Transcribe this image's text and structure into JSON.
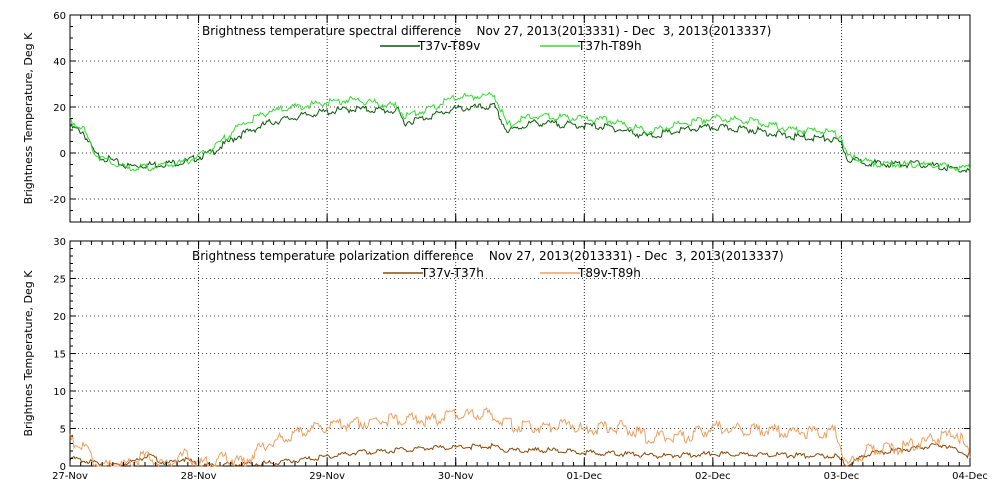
{
  "chart_data": [
    {
      "type": "line",
      "title": "Brightness temperature spectral difference    Nov 27, 2013(2013331) - Dec  3, 2013(2013337)",
      "ylabel": "Brightness Temperature, Deg K",
      "xlabel": "",
      "ylim": [
        -30,
        60
      ],
      "yticks": [
        "-20",
        "0",
        "20",
        "40",
        "60"
      ],
      "ytick_values": [
        -20,
        0,
        20,
        40,
        60
      ],
      "xlim_days": [
        0,
        7
      ],
      "xtick_labels": [
        "27-Nov",
        "28-Nov",
        "29-Nov",
        "30-Nov",
        "01-Dec",
        "02-Dec",
        "03-Dec",
        "04-Dec"
      ],
      "grid": "dotted, vertical at day boundaries, horizontal at labeled ticks",
      "legend": "top-center",
      "series": [
        {
          "name": "T37v-T89v",
          "color": "#0a5a0a",
          "x": [
            0,
            0.1,
            0.2,
            0.3,
            0.45,
            0.7,
            0.9,
            1.1,
            1.3,
            1.55,
            1.9,
            2.2,
            2.55,
            2.6,
            2.75,
            3.0,
            3.3,
            3.4,
            3.6,
            3.9,
            4.2,
            4.5,
            4.8,
            5.0,
            5.3,
            5.6,
            5.9,
            6.0,
            6.05,
            6.3,
            6.6,
            7.0
          ],
          "y": [
            12,
            10,
            0,
            -2,
            -5,
            -4,
            -3,
            1,
            8,
            14,
            18,
            20,
            19,
            14,
            16,
            20,
            21,
            10,
            14,
            13,
            12,
            8,
            11,
            12,
            11,
            8,
            7,
            5,
            -2,
            -4,
            -4,
            -7
          ]
        },
        {
          "name": "T37h-T89h",
          "color": "#33dd33",
          "x": [
            0,
            0.1,
            0.2,
            0.3,
            0.45,
            0.7,
            0.9,
            1.1,
            1.3,
            1.55,
            1.9,
            2.2,
            2.55,
            2.6,
            2.75,
            3.0,
            3.3,
            3.4,
            3.6,
            3.9,
            4.2,
            4.5,
            4.8,
            5.0,
            5.3,
            5.6,
            5.9,
            6.0,
            6.05,
            6.3,
            6.6,
            7.0
          ],
          "y": [
            15,
            12,
            0,
            -3,
            -6,
            -5,
            -3,
            2,
            12,
            19,
            22,
            24,
            21,
            17,
            19,
            25,
            26,
            13,
            17,
            16,
            15,
            10,
            14,
            16,
            15,
            11,
            10,
            8,
            -1,
            -4,
            -4,
            -6
          ]
        }
      ]
    },
    {
      "type": "line",
      "title": "Brightness temperature polarization difference    Nov 27, 2013(2013331) - Dec  3, 2013(2013337)",
      "ylabel": "Brightnes Temperature, Deg K",
      "xlabel": "",
      "ylim": [
        0,
        30
      ],
      "yticks": [
        "0",
        "5",
        "10",
        "15",
        "20",
        "25",
        "30"
      ],
      "ytick_values": [
        0,
        5,
        10,
        15,
        20,
        25,
        30
      ],
      "xlim_days": [
        0,
        7
      ],
      "xtick_labels": [
        "27-Nov",
        "28-Nov",
        "29-Nov",
        "30-Nov",
        "01-Dec",
        "02-Dec",
        "03-Dec",
        "04-Dec"
      ],
      "grid": "dotted, vertical at day boundaries, horizontal at labeled ticks",
      "legend": "top-center",
      "series": [
        {
          "name": "T37v-T37h",
          "color": "#8b4a0a",
          "x": [
            0,
            0.2,
            0.3,
            0.5,
            0.6,
            0.75,
            0.9,
            1.0,
            1.3,
            1.6,
            1.9,
            2.2,
            2.5,
            2.7,
            3.0,
            3.3,
            3.4,
            3.7,
            4.0,
            4.3,
            4.6,
            5.0,
            5.3,
            5.6,
            5.95,
            6.05,
            6.2,
            6.5,
            6.8,
            7.0
          ],
          "y": [
            1.2,
            0.6,
            0.2,
            0.8,
            1.6,
            0.5,
            1.2,
            0.2,
            0.4,
            0.6,
            1.2,
            1.9,
            2.2,
            2.5,
            2.7,
            2.8,
            2.2,
            2.3,
            2.0,
            1.8,
            1.5,
            1.8,
            1.7,
            1.6,
            1.5,
            0.2,
            1.8,
            2.4,
            3.0,
            1.5
          ]
        },
        {
          "name": "T89v-T89h",
          "color": "#f0a060",
          "x": [
            0,
            0.1,
            0.2,
            0.3,
            0.45,
            0.6,
            0.75,
            0.9,
            1.0,
            1.2,
            1.35,
            1.5,
            1.7,
            1.9,
            2.1,
            2.4,
            2.6,
            2.8,
            3.0,
            3.3,
            3.4,
            3.6,
            3.9,
            4.0,
            4.3,
            4.5,
            4.8,
            5.0,
            5.3,
            5.6,
            5.95,
            6.05,
            6.2,
            6.5,
            6.7,
            6.9,
            7.0
          ],
          "y": [
            4.0,
            3.0,
            1.0,
            0.3,
            0.8,
            1.8,
            0.6,
            2.0,
            0.5,
            1.5,
            1.0,
            3.0,
            4.5,
            5.5,
            6.0,
            6.5,
            6.7,
            6.5,
            7.3,
            7.3,
            6.0,
            5.5,
            6.0,
            5.2,
            5.8,
            4.2,
            4.4,
            5.6,
            5.3,
            5.0,
            5.0,
            0.4,
            2.5,
            3.0,
            4.0,
            4.8,
            2.0
          ]
        }
      ]
    }
  ]
}
